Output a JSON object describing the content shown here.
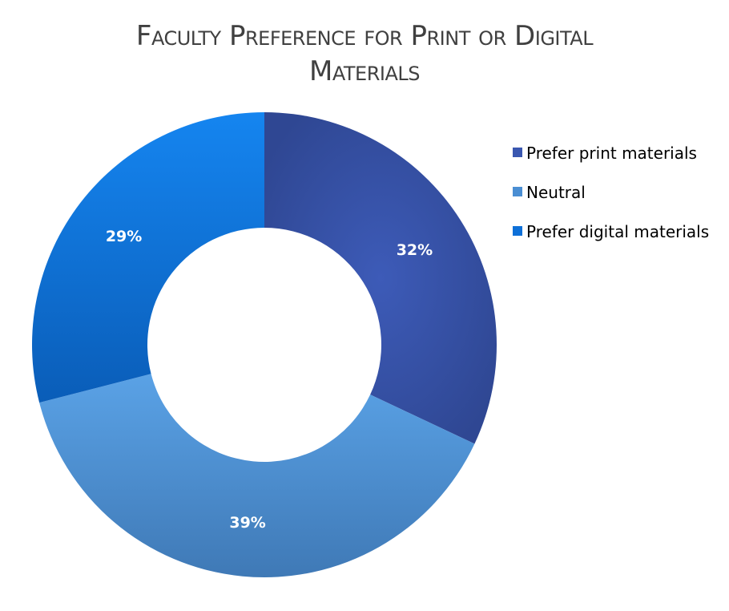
{
  "chart_data": {
    "type": "pie",
    "donut": true,
    "title_lines": [
      "Faculty Preference for Print or Digital",
      "Materials"
    ],
    "title": "Faculty Preference for Print or Digital Materials",
    "categories": [
      "Prefer print materials",
      "Neutral",
      "Prefer digital materials"
    ],
    "values": [
      32,
      39,
      29
    ],
    "value_labels": [
      "32%",
      "39%",
      "29%"
    ],
    "colors": [
      "#3A57B0",
      "#4A8ED3",
      "#0E70D8"
    ],
    "legend_position": "right",
    "start_angle_deg": 0,
    "direction": "clockwise"
  }
}
